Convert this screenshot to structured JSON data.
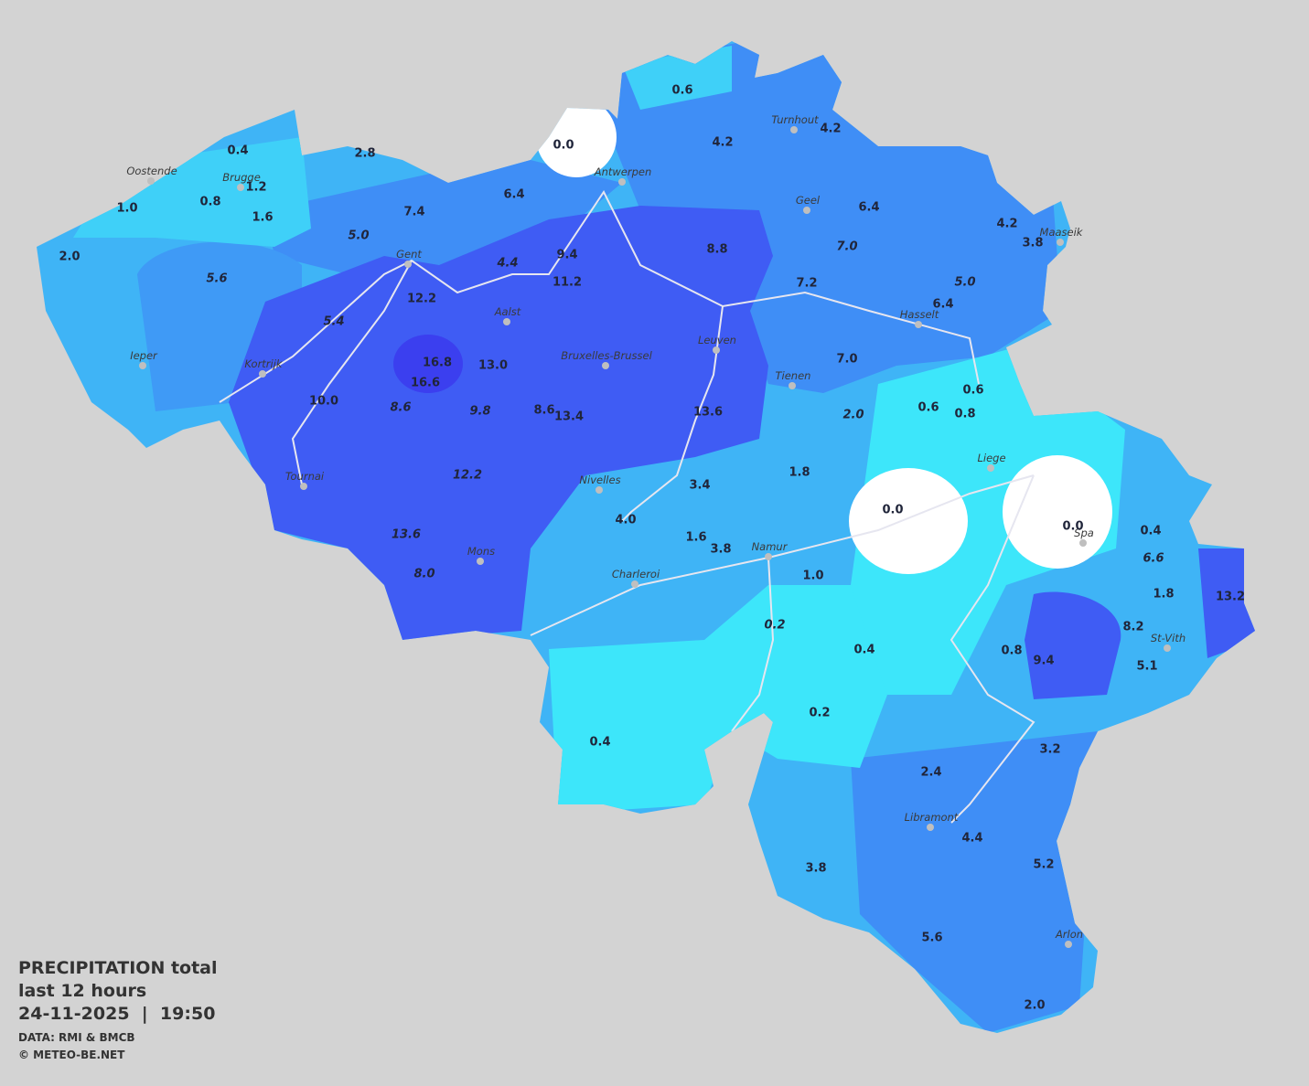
{
  "legend": {
    "lines": [
      "PRECIPITATION total",
      "last 12 hours",
      "24-11-2025  |  19:50"
    ],
    "credits": [
      "DATA: RMI & BMCB",
      "© METEO-BE.NET"
    ]
  },
  "cities": [
    "Oostende",
    "Brugge",
    "Antwerpen",
    "Turnhout",
    "Geel",
    "Maaseik",
    "Gent",
    "Aalst",
    "Hasselt",
    "Ieper",
    "Kortrijk",
    "Bruxelles-Brussel",
    "Leuven",
    "Tienen",
    "Liege",
    "Tournai",
    "Nivelles",
    "Spa",
    "Namur",
    "Mons",
    "Charleroi",
    "St-Vith",
    "Libramont",
    "Arlon"
  ],
  "measured": [
    "0.4",
    "0.0",
    "0.6",
    "2.8",
    "1.2",
    "0.8",
    "1.6",
    "1.0",
    "2.0",
    "6.4",
    "7.4",
    "4.2",
    "4.2",
    "6.4",
    "4.2",
    "3.8",
    "8.8",
    "9.4",
    "11.2",
    "7.2",
    "6.4",
    "12.2",
    "16.8",
    "16.6",
    "13.0",
    "7.0",
    "10.0",
    "8.6",
    "13.4",
    "13.6",
    "0.6",
    "0.6",
    "0.8",
    "1.8",
    "3.4",
    "4.0",
    "0.0",
    "0.0",
    "0.4",
    "1.6",
    "3.8",
    "1.0",
    "1.8",
    "13.2",
    "8.2",
    "0.4",
    "0.8",
    "9.4",
    "5.1",
    "0.2",
    "0.4",
    "3.2",
    "2.4",
    "4.4",
    "5.2",
    "3.8",
    "5.6",
    "2.0"
  ],
  "interpolated": [
    "5.0",
    "4.4",
    "5.6",
    "7.0",
    "5.0",
    "5.4",
    "8.6",
    "9.8",
    "2.0",
    "12.2",
    "13.6",
    "8.0",
    "6.6",
    "0.2"
  ]
}
